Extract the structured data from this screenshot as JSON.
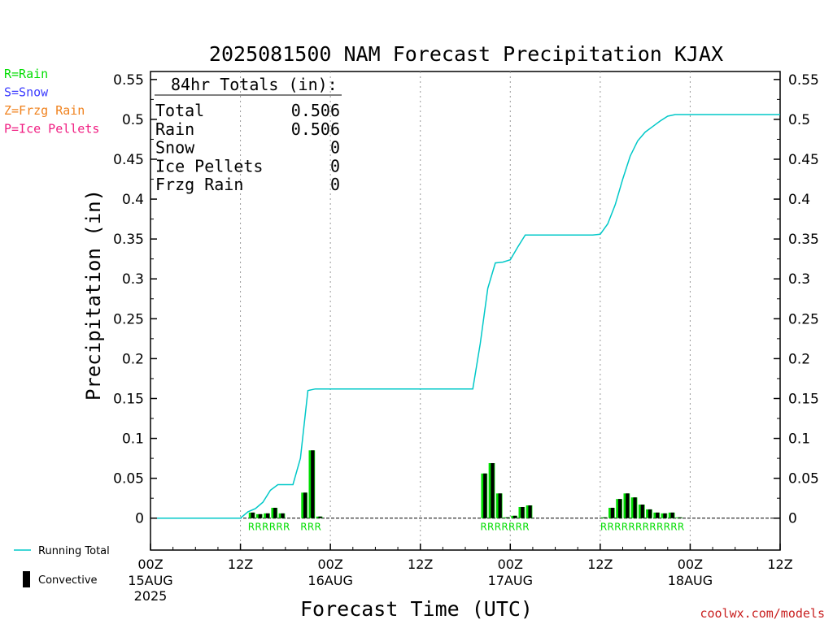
{
  "chart_data": {
    "type": "bar",
    "title": "2025081500 NAM Forecast Precipitation KJAX",
    "xlabel": "Forecast Time (UTC)",
    "ylabel": "Precipitation (in)",
    "ylim": [
      -0.04,
      0.56
    ],
    "xlim_hours": [
      0,
      84
    ],
    "yticks": [
      "0",
      "0.05",
      "0.1",
      "0.15",
      "0.2",
      "0.25",
      "0.3",
      "0.35",
      "0.4",
      "0.45",
      "0.5",
      "0.55"
    ],
    "ytick_values": [
      0,
      0.05,
      0.1,
      0.15,
      0.2,
      0.25,
      0.3,
      0.35,
      0.4,
      0.45,
      0.5,
      0.55
    ],
    "xticks": [
      {
        "hour": 0,
        "label": "00Z",
        "date": "15AUG",
        "year": "2025"
      },
      {
        "hour": 12,
        "label": "12Z",
        "date": "",
        "year": ""
      },
      {
        "hour": 24,
        "label": "00Z",
        "date": "16AUG",
        "year": ""
      },
      {
        "hour": 36,
        "label": "12Z",
        "date": "",
        "year": ""
      },
      {
        "hour": 48,
        "label": "00Z",
        "date": "17AUG",
        "year": ""
      },
      {
        "hour": 60,
        "label": "12Z",
        "date": "",
        "year": ""
      },
      {
        "hour": 72,
        "label": "00Z",
        "date": "18AUG",
        "year": ""
      },
      {
        "hour": 84,
        "label": "12Z",
        "date": "",
        "year": ""
      }
    ],
    "grid": "vertical-dotted",
    "series": [
      {
        "name": "Running Total",
        "kind": "line",
        "color": "#00c8c8",
        "hours": [
          0,
          12,
          13,
          14,
          15,
          16,
          17,
          18,
          19,
          20,
          21,
          22,
          23,
          24,
          25,
          35,
          36,
          37,
          43,
          44,
          45,
          46,
          47,
          48,
          49,
          50,
          51,
          52,
          53,
          54,
          55,
          56,
          57,
          58,
          59,
          60,
          61,
          62,
          63,
          64,
          65,
          66,
          67,
          68,
          69,
          70,
          71,
          84
        ],
        "values": [
          0,
          0,
          0.008,
          0.012,
          0.02,
          0.035,
          0.042,
          0.042,
          0.042,
          0.075,
          0.16,
          0.162,
          0.162,
          0.162,
          0.162,
          0.162,
          0.162,
          0.162,
          0.162,
          0.219,
          0.288,
          0.32,
          0.321,
          0.324,
          0.34,
          0.355,
          0.355,
          0.355,
          0.355,
          0.355,
          0.355,
          0.355,
          0.355,
          0.355,
          0.355,
          0.356,
          0.369,
          0.393,
          0.425,
          0.454,
          0.473,
          0.484,
          0.491,
          0.498,
          0.504,
          0.506,
          0.506,
          0.506
        ]
      },
      {
        "name": "Convective",
        "kind": "bar",
        "hours": [
          14,
          15,
          16,
          17,
          18,
          21,
          22,
          23,
          45,
          46,
          47,
          48,
          49,
          50,
          51,
          61,
          62,
          63,
          64,
          65,
          66,
          67,
          68,
          69,
          70,
          71,
          72
        ],
        "values": [
          0.007,
          0.005,
          0.006,
          0.013,
          0.006,
          0.032,
          0.085,
          0.002,
          0.056,
          0.069,
          0.031,
          0.001,
          0.003,
          0.014,
          0.016,
          0.001,
          0.013,
          0.024,
          0.031,
          0.026,
          0.017,
          0.011,
          0.007,
          0.006,
          0.007,
          0.001,
          0.0
        ],
        "ptype": "R"
      }
    ],
    "type_label_groups": [
      {
        "start_hour": 14,
        "text": "RRRRRR"
      },
      {
        "start_hour": 21,
        "text": "RRR"
      },
      {
        "start_hour": 45,
        "text": "RRRRRRR"
      },
      {
        "start_hour": 61,
        "text": "RRRRRRRRRRRR"
      }
    ],
    "totals_box": {
      "heading": "84hr Totals (in):",
      "rows": [
        {
          "label": "Total",
          "value": "0.506"
        },
        {
          "label": "Rain",
          "value": "0.506"
        },
        {
          "label": "Snow",
          "value": "0"
        },
        {
          "label": "Ice Pellets",
          "value": "0"
        },
        {
          "label": "Frzg Rain",
          "value": "0"
        }
      ]
    }
  },
  "ptype_legend": [
    {
      "text": "R=Rain",
      "color": "#00dd00"
    },
    {
      "text": "S=Snow",
      "color": "#3c3cff"
    },
    {
      "text": "Z=Frzg Rain",
      "color": "#f0821e"
    },
    {
      "text": "P=Ice Pellets",
      "color": "#f01e82"
    }
  ],
  "series_legend": {
    "line_label": "Running Total",
    "bar_label": "Convective"
  },
  "colors": {
    "bar_fill": "#00dd00",
    "bar_convective": "#000000",
    "line": "#00c8c8",
    "footer": "#c81e1e"
  },
  "footer": "coolwx.com/models"
}
